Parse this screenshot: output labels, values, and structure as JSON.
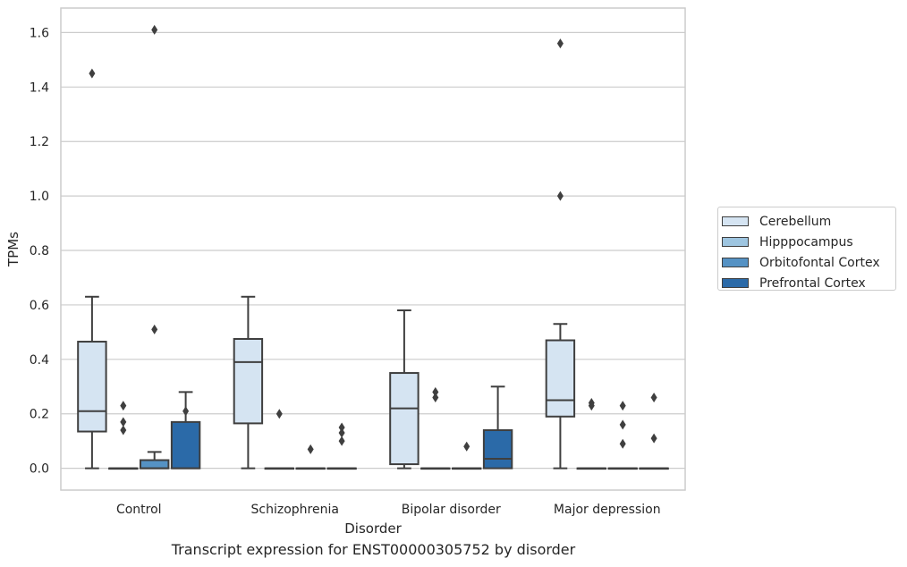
{
  "chart_data": {
    "type": "box",
    "caption": "Transcript expression for ENST00000305752 by disorder",
    "xlabel": "Disorder",
    "ylabel": "TPMs",
    "ylim": [
      -0.08,
      1.69
    ],
    "yticks": [
      "0.0",
      "0.2",
      "0.4",
      "0.6",
      "0.8",
      "1.0",
      "1.2",
      "1.4",
      "1.6"
    ],
    "categories": [
      "Control",
      "Schizophrenia",
      "Bipolar disorder",
      "Major depression"
    ],
    "grid": true,
    "legend_position": "right",
    "series": [
      {
        "name": "Cerebellum",
        "color": "#d5e4f2",
        "boxes": [
          {
            "min": 0.0,
            "q1": 0.135,
            "median": 0.21,
            "q3": 0.465,
            "max": 0.63,
            "outliers": [
              1.45
            ]
          },
          {
            "min": 0.0,
            "q1": 0.165,
            "median": 0.39,
            "q3": 0.475,
            "max": 0.63,
            "outliers": []
          },
          {
            "min": 0.0,
            "q1": 0.015,
            "median": 0.22,
            "q3": 0.35,
            "max": 0.58,
            "outliers": []
          },
          {
            "min": 0.0,
            "q1": 0.19,
            "median": 0.25,
            "q3": 0.47,
            "max": 0.53,
            "outliers": [
              1.56,
              1.0
            ]
          }
        ]
      },
      {
        "name": "Hipppocampus",
        "color": "#9ec5e0",
        "boxes": [
          {
            "min": 0.0,
            "q1": 0.0,
            "median": 0.0,
            "q3": 0.0,
            "max": 0.0,
            "outliers": [
              0.23,
              0.17,
              0.14
            ]
          },
          {
            "min": 0.0,
            "q1": 0.0,
            "median": 0.0,
            "q3": 0.0,
            "max": 0.0,
            "outliers": [
              0.2
            ]
          },
          {
            "min": 0.0,
            "q1": 0.0,
            "median": 0.0,
            "q3": 0.0,
            "max": 0.0,
            "outliers": [
              0.28,
              0.26
            ]
          },
          {
            "min": 0.0,
            "q1": 0.0,
            "median": 0.0,
            "q3": 0.0,
            "max": 0.0,
            "outliers": [
              0.24,
              0.23
            ]
          }
        ]
      },
      {
        "name": "Orbitofontal Cortex",
        "color": "#5592c4",
        "boxes": [
          {
            "min": 0.0,
            "q1": 0.0,
            "median": 0.0,
            "q3": 0.03,
            "max": 0.06,
            "outliers": [
              1.61,
              0.51
            ]
          },
          {
            "min": 0.0,
            "q1": 0.0,
            "median": 0.0,
            "q3": 0.0,
            "max": 0.0,
            "outliers": [
              0.07
            ]
          },
          {
            "min": 0.0,
            "q1": 0.0,
            "median": 0.0,
            "q3": 0.0,
            "max": 0.0,
            "outliers": [
              0.08
            ]
          },
          {
            "min": 0.0,
            "q1": 0.0,
            "median": 0.0,
            "q3": 0.0,
            "max": 0.0,
            "outliers": [
              0.23,
              0.16,
              0.09
            ]
          }
        ]
      },
      {
        "name": "Prefrontal Cortex",
        "color": "#2b6aa8",
        "boxes": [
          {
            "min": 0.0,
            "q1": 0.0,
            "median": 0.0,
            "q3": 0.17,
            "max": 0.28,
            "outliers": [
              0.21
            ]
          },
          {
            "min": 0.0,
            "q1": 0.0,
            "median": 0.0,
            "q3": 0.0,
            "max": 0.0,
            "outliers": [
              0.15,
              0.13,
              0.1
            ]
          },
          {
            "min": 0.0,
            "q1": 0.0,
            "median": 0.035,
            "q3": 0.14,
            "max": 0.3,
            "outliers": []
          },
          {
            "min": 0.0,
            "q1": 0.0,
            "median": 0.0,
            "q3": 0.0,
            "max": 0.0,
            "outliers": [
              0.26,
              0.11
            ]
          }
        ]
      }
    ]
  }
}
